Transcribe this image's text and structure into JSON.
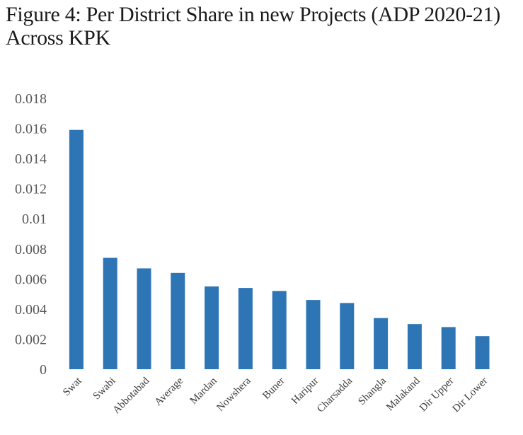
{
  "title": "Figure 4: Per District Share in new Projects (ADP 2020-21) Across KPK",
  "chart_data": {
    "type": "bar",
    "categories": [
      "Swat",
      "Swabi",
      "Abbotabad",
      "Average",
      "Mardan",
      "Nowshera",
      "Buner",
      "Haripur",
      "Charsadda",
      "Shangla",
      "Malakand",
      "Dir Upper",
      "Dir Lower"
    ],
    "values": [
      0.0159,
      0.0074,
      0.0067,
      0.0064,
      0.0055,
      0.0054,
      0.0052,
      0.0046,
      0.0044,
      0.0034,
      0.003,
      0.0028,
      0.0022
    ],
    "ylim": [
      0,
      0.018
    ],
    "yticks": [
      "0",
      "0.002",
      "0.004",
      "0.006",
      "0.008",
      "0.01",
      "0.012",
      "0.014",
      "0.016",
      "0.018"
    ],
    "bar_color": "#2E75B6",
    "grid": false,
    "legend": "none"
  }
}
